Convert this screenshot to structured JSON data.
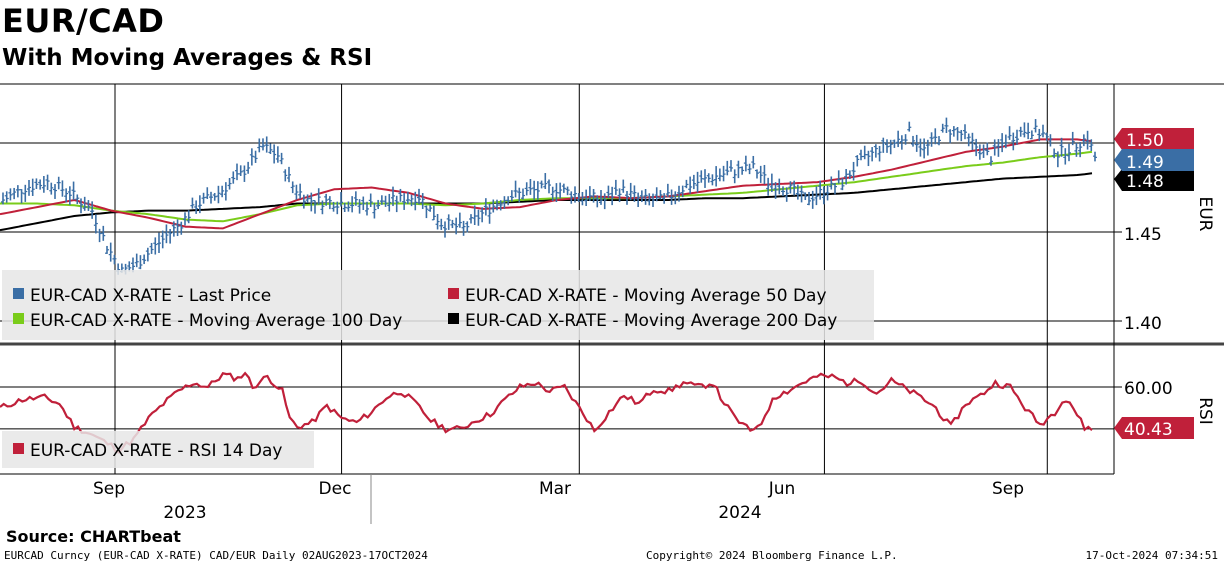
{
  "header": {
    "title": "EUR/CAD",
    "subtitle": "With Moving Averages & RSI"
  },
  "footer": {
    "source": "Source:  CHARTbeat",
    "ticker_info": "EURCAD Curncy (EUR-CAD X-RATE) CAD/EUR  Daily 02AUG2023-17OCT2024",
    "copyright": "Copyright© 2024 Bloomberg Finance L.P.",
    "timestamp": "17-Oct-2024 07:34:51"
  },
  "colors": {
    "price": "#3a6ea5",
    "ma50": "#c0203a",
    "ma100": "#7acc1a",
    "ma200": "#000000",
    "rsi": "#c0203a"
  },
  "chart_data": [
    {
      "type": "line",
      "title": "EUR/CAD",
      "ylabel": "EUR",
      "ylim": [
        1.385,
        1.53
      ],
      "yticks": [
        "1.40",
        "1.45"
      ],
      "x_month_labels": [
        "Sep",
        "Dec",
        "Mar",
        "Jun",
        "Sep"
      ],
      "x_year_labels": [
        "2023",
        "2024"
      ],
      "x_month_index": [
        21,
        82,
        146,
        212,
        272
      ],
      "legend": [
        "EUR-CAD X-RATE - Last Price",
        "EUR-CAD X-RATE - Moving Average 50 Day",
        "EUR-CAD X-RATE - Moving Average 100 Day",
        "EUR-CAD X-RATE - Moving Average 200 Day"
      ],
      "last_value_labels": [
        "1.50",
        "1.49",
        "1.48"
      ],
      "series": [
        {
          "name": "EUR-CAD X-RATE - Last Price",
          "style": "ohlc",
          "anchors": [
            [
              0,
              1.468
            ],
            [
              6,
              1.475
            ],
            [
              12,
              1.478
            ],
            [
              18,
              1.472
            ],
            [
              24,
              1.462
            ],
            [
              28,
              1.442
            ],
            [
              32,
              1.428
            ],
            [
              36,
              1.432
            ],
            [
              40,
              1.44
            ],
            [
              44,
              1.448
            ],
            [
              48,
              1.455
            ],
            [
              52,
              1.465
            ],
            [
              58,
              1.472
            ],
            [
              64,
              1.482
            ],
            [
              70,
              1.498
            ],
            [
              74,
              1.493
            ],
            [
              78,
              1.476
            ],
            [
              82,
              1.468
            ],
            [
              88,
              1.467
            ],
            [
              94,
              1.466
            ],
            [
              100,
              1.465
            ],
            [
              106,
              1.468
            ],
            [
              112,
              1.47
            ],
            [
              118,
              1.455
            ],
            [
              124,
              1.452
            ],
            [
              130,
              1.462
            ],
            [
              136,
              1.47
            ],
            [
              142,
              1.473
            ],
            [
              148,
              1.475
            ],
            [
              156,
              1.47
            ],
            [
              162,
              1.468
            ],
            [
              166,
              1.474
            ],
            [
              172,
              1.468
            ],
            [
              178,
              1.468
            ],
            [
              184,
              1.476
            ],
            [
              190,
              1.48
            ],
            [
              196,
              1.484
            ],
            [
              202,
              1.486
            ],
            [
              206,
              1.478
            ],
            [
              212,
              1.474
            ],
            [
              216,
              1.468
            ],
            [
              220,
              1.472
            ],
            [
              226,
              1.478
            ],
            [
              230,
              1.488
            ],
            [
              236,
              1.497
            ],
            [
              240,
              1.5
            ],
            [
              244,
              1.506
            ],
            [
              248,
              1.496
            ],
            [
              254,
              1.508
            ],
            [
              258,
              1.505
            ],
            [
              262,
              1.498
            ],
            [
              266,
              1.492
            ],
            [
              270,
              1.502
            ],
            [
              276,
              1.508
            ],
            [
              280,
              1.505
            ],
            [
              284,
              1.494
            ],
            [
              288,
              1.498
            ],
            [
              292,
              1.503
            ],
            [
              294,
              1.492
            ]
          ]
        },
        {
          "name": "EUR-CAD X-RATE - Moving Average 50 Day",
          "anchors": [
            [
              0,
              1.46
            ],
            [
              10,
              1.464
            ],
            [
              20,
              1.468
            ],
            [
              30,
              1.462
            ],
            [
              40,
              1.458
            ],
            [
              50,
              1.453
            ],
            [
              60,
              1.452
            ],
            [
              70,
              1.46
            ],
            [
              80,
              1.468
            ],
            [
              90,
              1.474
            ],
            [
              100,
              1.475
            ],
            [
              110,
              1.472
            ],
            [
              120,
              1.466
            ],
            [
              130,
              1.463
            ],
            [
              140,
              1.464
            ],
            [
              150,
              1.468
            ],
            [
              160,
              1.47
            ],
            [
              170,
              1.469
            ],
            [
              180,
              1.47
            ],
            [
              190,
              1.473
            ],
            [
              200,
              1.476
            ],
            [
              210,
              1.477
            ],
            [
              220,
              1.478
            ],
            [
              230,
              1.481
            ],
            [
              240,
              1.485
            ],
            [
              250,
              1.49
            ],
            [
              260,
              1.495
            ],
            [
              270,
              1.498
            ],
            [
              280,
              1.502
            ],
            [
              290,
              1.502
            ],
            [
              294,
              1.501
            ]
          ]
        },
        {
          "name": "EUR-CAD X-RATE - Moving Average 100 Day",
          "anchors": [
            [
              0,
              1.466
            ],
            [
              10,
              1.466
            ],
            [
              20,
              1.465
            ],
            [
              30,
              1.462
            ],
            [
              40,
              1.46
            ],
            [
              50,
              1.457
            ],
            [
              60,
              1.456
            ],
            [
              70,
              1.46
            ],
            [
              80,
              1.465
            ],
            [
              90,
              1.466
            ],
            [
              100,
              1.466
            ],
            [
              110,
              1.466
            ],
            [
              120,
              1.465
            ],
            [
              130,
              1.466
            ],
            [
              140,
              1.468
            ],
            [
              150,
              1.469
            ],
            [
              160,
              1.469
            ],
            [
              170,
              1.469
            ],
            [
              180,
              1.47
            ],
            [
              190,
              1.471
            ],
            [
              200,
              1.472
            ],
            [
              210,
              1.474
            ],
            [
              220,
              1.476
            ],
            [
              230,
              1.478
            ],
            [
              240,
              1.481
            ],
            [
              250,
              1.484
            ],
            [
              260,
              1.487
            ],
            [
              270,
              1.489
            ],
            [
              280,
              1.492
            ],
            [
              290,
              1.494
            ],
            [
              294,
              1.495
            ]
          ]
        },
        {
          "name": "EUR-CAD X-RATE - Moving Average 200 Day",
          "anchors": [
            [
              0,
              1.451
            ],
            [
              10,
              1.455
            ],
            [
              20,
              1.459
            ],
            [
              30,
              1.461
            ],
            [
              40,
              1.462
            ],
            [
              50,
              1.462
            ],
            [
              60,
              1.463
            ],
            [
              70,
              1.464
            ],
            [
              80,
              1.466
            ],
            [
              90,
              1.466
            ],
            [
              100,
              1.466
            ],
            [
              110,
              1.466
            ],
            [
              120,
              1.466
            ],
            [
              130,
              1.466
            ],
            [
              140,
              1.467
            ],
            [
              150,
              1.468
            ],
            [
              160,
              1.468
            ],
            [
              170,
              1.468
            ],
            [
              180,
              1.468
            ],
            [
              190,
              1.469
            ],
            [
              200,
              1.469
            ],
            [
              210,
              1.47
            ],
            [
              220,
              1.471
            ],
            [
              230,
              1.472
            ],
            [
              240,
              1.474
            ],
            [
              250,
              1.476
            ],
            [
              260,
              1.478
            ],
            [
              270,
              1.48
            ],
            [
              280,
              1.481
            ],
            [
              290,
              1.482
            ],
            [
              294,
              1.483
            ]
          ]
        }
      ]
    },
    {
      "type": "line",
      "title": "RSI",
      "ylabel": "RSI",
      "ylim": [
        27,
        68
      ],
      "yticks": [
        "60.00"
      ],
      "legend": [
        "EUR-CAD X-RATE - RSI 14 Day"
      ],
      "last_value_labels": [
        "40.43"
      ],
      "series": [
        {
          "name": "EUR-CAD X-RATE - RSI 14 Day",
          "anchors": [
            [
              0,
              50
            ],
            [
              6,
              54
            ],
            [
              12,
              55
            ],
            [
              16,
              52
            ],
            [
              20,
              41
            ],
            [
              24,
              38
            ],
            [
              28,
              34
            ],
            [
              32,
              30
            ],
            [
              36,
              35
            ],
            [
              40,
              45
            ],
            [
              44,
              52
            ],
            [
              48,
              58
            ],
            [
              52,
              62
            ],
            [
              56,
              60
            ],
            [
              60,
              66
            ],
            [
              64,
              64
            ],
            [
              66,
              67
            ],
            [
              68,
              60
            ],
            [
              72,
              65
            ],
            [
              76,
              58
            ],
            [
              78,
              45
            ],
            [
              80,
              41
            ],
            [
              84,
              43
            ],
            [
              88,
              51
            ],
            [
              92,
              45
            ],
            [
              96,
              43
            ],
            [
              100,
              48
            ],
            [
              104,
              55
            ],
            [
              108,
              58
            ],
            [
              112,
              52
            ],
            [
              116,
              44
            ],
            [
              120,
              40
            ],
            [
              124,
              40
            ],
            [
              128,
              44
            ],
            [
              132,
              47
            ],
            [
              136,
              54
            ],
            [
              140,
              60
            ],
            [
              144,
              62
            ],
            [
              148,
              58
            ],
            [
              152,
              60
            ],
            [
              154,
              55
            ],
            [
              158,
              45
            ],
            [
              160,
              39
            ],
            [
              164,
              48
            ],
            [
              168,
              56
            ],
            [
              172,
              52
            ],
            [
              176,
              59
            ],
            [
              180,
              58
            ],
            [
              184,
              62
            ],
            [
              188,
              60
            ],
            [
              192,
              62
            ],
            [
              194,
              55
            ],
            [
              198,
              45
            ],
            [
              202,
              39
            ],
            [
              206,
              45
            ],
            [
              208,
              55
            ],
            [
              212,
              58
            ],
            [
              216,
              62
            ],
            [
              220,
              65
            ],
            [
              224,
              65
            ],
            [
              228,
              62
            ],
            [
              232,
              63
            ],
            [
              236,
              57
            ],
            [
              240,
              63
            ],
            [
              244,
              59
            ],
            [
              248,
              55
            ],
            [
              252,
              50
            ],
            [
              254,
              45
            ],
            [
              256,
              41
            ],
            [
              260,
              52
            ],
            [
              264,
              56
            ],
            [
              268,
              62
            ],
            [
              272,
              60
            ],
            [
              276,
              50
            ],
            [
              280,
              42
            ],
            [
              284,
              48
            ],
            [
              286,
              54
            ],
            [
              288,
              53
            ],
            [
              292,
              40.5
            ]
          ]
        }
      ]
    }
  ]
}
